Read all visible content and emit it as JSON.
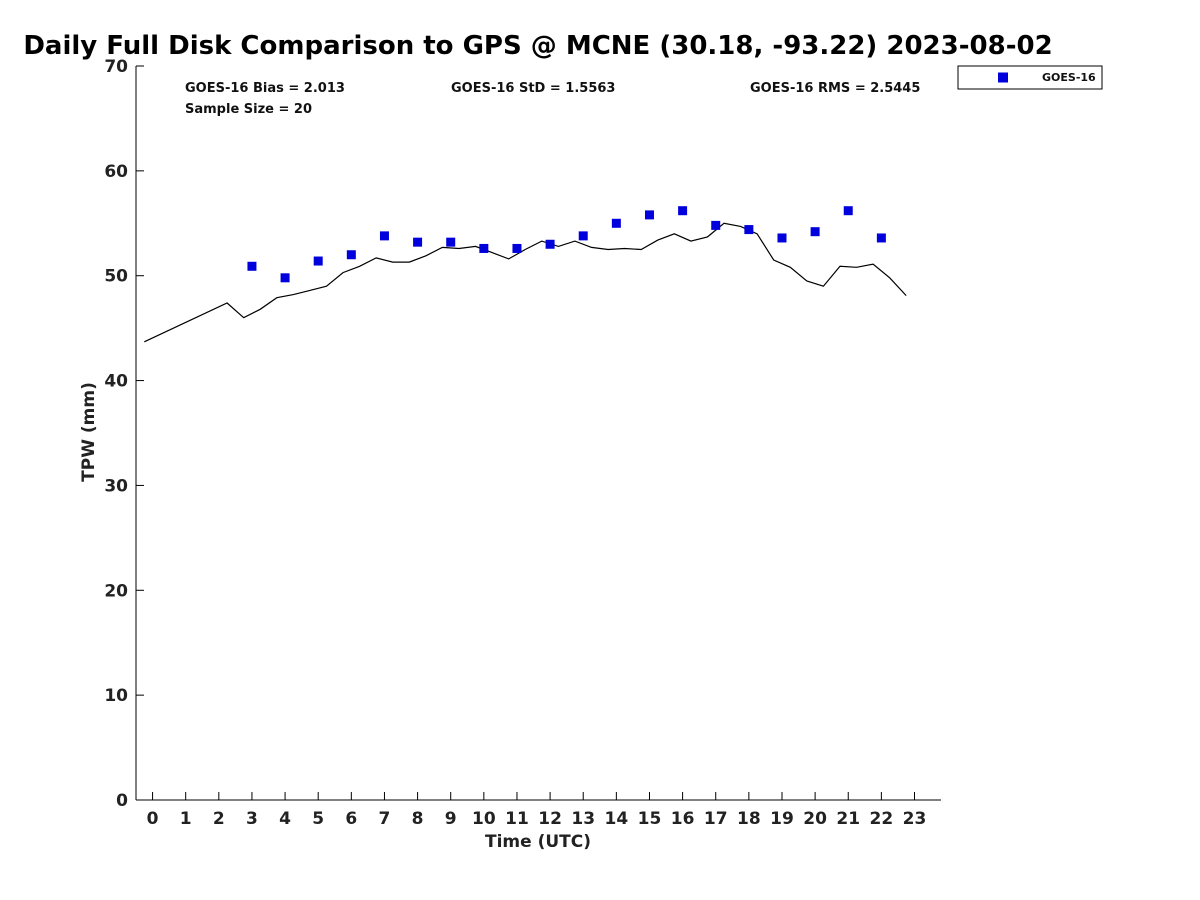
{
  "chart_data": {
    "type": "scatter",
    "title": "Daily Full Disk Comparison to GPS @ MCNE (30.18, -93.22) 2023-08-02",
    "xlabel": "Time (UTC)",
    "ylabel": "TPW (mm)",
    "xlim": [
      -0.5,
      23.8
    ],
    "ylim": [
      0,
      70
    ],
    "x_ticks": [
      "0",
      "1",
      "2",
      "3",
      "4",
      "5",
      "6",
      "7",
      "8",
      "9",
      "10",
      "11",
      "12",
      "13",
      "14",
      "15",
      "16",
      "17",
      "18",
      "19",
      "20",
      "21",
      "22",
      "23"
    ],
    "y_ticks": [
      "0",
      "10",
      "20",
      "30",
      "40",
      "50",
      "60",
      "70"
    ],
    "grid": false,
    "legend_position": "top-right",
    "stats": {
      "bias": "GOES-16 Bias = 2.013",
      "std": "GOES-16 StD = 1.5563",
      "rms": "GOES-16 RMS = 2.5445",
      "sample": "Sample Size = 20"
    },
    "series": [
      {
        "name": "GOES-16",
        "kind": "scatter",
        "color": "#0000dd",
        "x": [
          3,
          4,
          5,
          6,
          7,
          8,
          9,
          10,
          11,
          12,
          13,
          14,
          15,
          16,
          17,
          18,
          19,
          20,
          21,
          22
        ],
        "y": [
          50.9,
          49.8,
          51.4,
          52.0,
          53.8,
          53.2,
          53.2,
          52.6,
          52.6,
          53.0,
          53.8,
          55.0,
          55.8,
          56.2,
          54.8,
          54.4,
          53.6,
          54.2,
          56.2,
          53.6
        ]
      },
      {
        "kind": "line",
        "color": "#000000",
        "x": [
          -0.25,
          2.25,
          2.75,
          3.25,
          3.75,
          4.25,
          4.75,
          5.25,
          5.75,
          6.25,
          6.75,
          7.25,
          7.75,
          8.25,
          8.75,
          9.25,
          9.75,
          10.25,
          10.75,
          11.25,
          11.75,
          12.25,
          12.75,
          13.25,
          13.75,
          14.25,
          14.75,
          15.25,
          15.75,
          16.25,
          16.75,
          17.25,
          17.75,
          18.25,
          18.75,
          19.25,
          19.75,
          20.25,
          20.75,
          21.25,
          21.75,
          22.25,
          22.75
        ],
        "y": [
          43.7,
          47.4,
          46.0,
          46.8,
          47.9,
          48.2,
          48.6,
          49.0,
          50.3,
          50.9,
          51.7,
          51.3,
          51.3,
          51.9,
          52.7,
          52.6,
          52.8,
          52.2,
          51.6,
          52.5,
          53.3,
          52.8,
          53.3,
          52.7,
          52.5,
          52.6,
          52.5,
          53.4,
          54.0,
          53.3,
          53.7,
          55.0,
          54.7,
          54.0,
          51.5,
          50.8,
          49.5,
          49.0,
          50.9,
          50.8,
          51.1,
          49.8,
          48.1
        ]
      }
    ]
  }
}
